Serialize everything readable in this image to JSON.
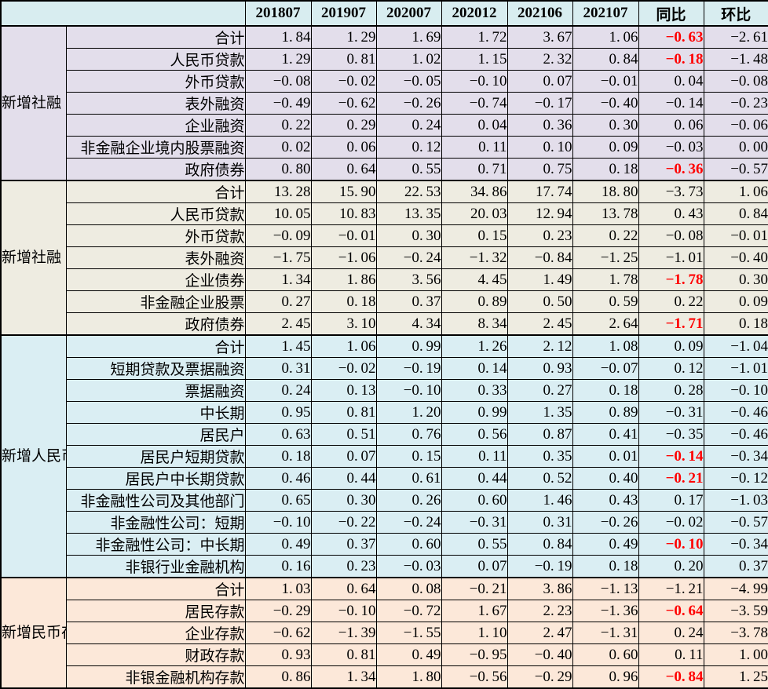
{
  "colors": {
    "header_bg": "#D8EDF0",
    "group_bgs": [
      "#E3DEEB",
      "#EEECE1",
      "#DAEEF3",
      "#FCE8D9"
    ],
    "negative_highlight": "#FF0000",
    "border": "#000000",
    "text": "#000000"
  },
  "chart_data": {
    "type": "table",
    "corner_label": "",
    "columns": [
      "201807",
      "201907",
      "202007",
      "202012",
      "202106",
      "202107",
      "同比",
      "环比"
    ],
    "groups": [
      {
        "label": "新增社融（当月值，万亿元）",
        "rows": [
          {
            "label": "合计",
            "values": [
              1.84,
              1.29,
              1.69,
              1.72,
              3.67,
              1.06,
              -0.63,
              -2.61
            ],
            "tongbi_red": true
          },
          {
            "label": "人民币贷款",
            "values": [
              1.29,
              0.81,
              1.02,
              1.15,
              2.32,
              0.84,
              -0.18,
              -1.48
            ],
            "tongbi_red": true
          },
          {
            "label": "外币贷款",
            "values": [
              -0.08,
              -0.02,
              -0.05,
              -0.1,
              0.07,
              -0.01,
              0.04,
              -0.08
            ],
            "tongbi_red": false
          },
          {
            "label": "表外融资",
            "values": [
              -0.49,
              -0.62,
              -0.26,
              -0.74,
              -0.17,
              -0.4,
              -0.14,
              -0.23
            ],
            "tongbi_red": false
          },
          {
            "label": "企业融资",
            "values": [
              0.22,
              0.29,
              0.24,
              0.04,
              0.36,
              0.3,
              0.06,
              -0.06
            ],
            "tongbi_red": false
          },
          {
            "label": "非金融企业境内股票融资",
            "values": [
              0.02,
              0.06,
              0.12,
              0.11,
              0.1,
              0.09,
              -0.03,
              0.0
            ],
            "tongbi_red": false
          },
          {
            "label": "政府债券",
            "values": [
              0.8,
              0.64,
              0.55,
              0.71,
              0.75,
              0.18,
              -0.36,
              -0.57
            ],
            "tongbi_red": true
          }
        ]
      },
      {
        "label": "新增社融（累计值，万亿元）",
        "rows": [
          {
            "label": "合计",
            "values": [
              13.28,
              15.9,
              22.53,
              34.86,
              17.74,
              18.8,
              -3.73,
              1.06
            ],
            "tongbi_red": false
          },
          {
            "label": "人民币贷款",
            "values": [
              10.05,
              10.83,
              13.35,
              20.03,
              12.94,
              13.78,
              0.43,
              0.84
            ],
            "tongbi_red": false
          },
          {
            "label": "外币贷款",
            "values": [
              -0.09,
              -0.01,
              0.3,
              0.15,
              0.23,
              0.22,
              -0.08,
              -0.01
            ],
            "tongbi_red": false
          },
          {
            "label": "表外融资",
            "values": [
              -1.75,
              -1.06,
              -0.24,
              -1.32,
              -0.84,
              -1.25,
              -1.01,
              -0.4
            ],
            "tongbi_red": false
          },
          {
            "label": "企业债券",
            "values": [
              1.34,
              1.86,
              3.56,
              4.45,
              1.49,
              1.78,
              -1.78,
              0.3
            ],
            "tongbi_red": true
          },
          {
            "label": "非金融企业股票",
            "values": [
              0.27,
              0.18,
              0.37,
              0.89,
              0.5,
              0.59,
              0.22,
              0.09
            ],
            "tongbi_red": false
          },
          {
            "label": "政府债券",
            "values": [
              2.45,
              3.1,
              4.34,
              8.34,
              2.45,
              2.64,
              -1.71,
              0.18
            ],
            "tongbi_red": true
          }
        ]
      },
      {
        "label": "新增人民币贷款（当月值，万亿元）",
        "rows": [
          {
            "label": "合计",
            "values": [
              1.45,
              1.06,
              0.99,
              1.26,
              2.12,
              1.08,
              0.09,
              -1.04
            ],
            "tongbi_red": false
          },
          {
            "label": "短期贷款及票据融资",
            "values": [
              0.31,
              -0.02,
              -0.19,
              0.14,
              0.93,
              -0.07,
              0.12,
              -1.01
            ],
            "tongbi_red": false
          },
          {
            "label": "票据融资",
            "values": [
              0.24,
              0.13,
              -0.1,
              0.33,
              0.27,
              0.18,
              0.28,
              -0.1
            ],
            "tongbi_red": false
          },
          {
            "label": "中长期",
            "values": [
              0.95,
              0.81,
              1.2,
              0.99,
              1.35,
              0.89,
              -0.31,
              -0.46
            ],
            "tongbi_red": false
          },
          {
            "label": "居民户",
            "values": [
              0.63,
              0.51,
              0.76,
              0.56,
              0.87,
              0.41,
              -0.35,
              -0.46
            ],
            "tongbi_red": false
          },
          {
            "label": "居民户短期贷款",
            "values": [
              0.18,
              0.07,
              0.15,
              0.11,
              0.35,
              0.01,
              -0.14,
              -0.34
            ],
            "tongbi_red": true
          },
          {
            "label": "居民户中长期贷款",
            "values": [
              0.46,
              0.44,
              0.61,
              0.44,
              0.52,
              0.4,
              -0.21,
              -0.12
            ],
            "tongbi_red": true
          },
          {
            "label": "非金融性公司及其他部门",
            "values": [
              0.65,
              0.3,
              0.26,
              0.6,
              1.46,
              0.43,
              0.17,
              -1.03
            ],
            "tongbi_red": false
          },
          {
            "label": "非金融性公司：短期",
            "values": [
              -0.1,
              -0.22,
              -0.24,
              -0.31,
              0.31,
              -0.26,
              -0.02,
              -0.57
            ],
            "tongbi_red": false
          },
          {
            "label": "非金融性公司：中长期",
            "values": [
              0.49,
              0.37,
              0.6,
              0.55,
              0.84,
              0.49,
              -0.1,
              -0.34
            ],
            "tongbi_red": true
          },
          {
            "label": "非银行业金融机构",
            "values": [
              0.16,
              0.23,
              -0.03,
              0.07,
              -0.19,
              0.18,
              0.2,
              0.37
            ],
            "tongbi_red": false
          }
        ]
      },
      {
        "label": "新增民币存款（当月值，万亿元）",
        "rows": [
          {
            "label": "合计",
            "values": [
              1.03,
              0.64,
              0.08,
              -0.21,
              3.86,
              -1.13,
              -1.21,
              -4.99
            ],
            "tongbi_red": false
          },
          {
            "label": "居民存款",
            "values": [
              -0.29,
              -0.1,
              -0.72,
              1.67,
              2.23,
              -1.36,
              -0.64,
              -3.59
            ],
            "tongbi_red": true
          },
          {
            "label": "企业存款",
            "values": [
              -0.62,
              -1.39,
              -1.55,
              1.1,
              2.47,
              -1.31,
              0.24,
              -3.78
            ],
            "tongbi_red": false
          },
          {
            "label": "财政存款",
            "values": [
              0.93,
              0.81,
              0.49,
              -0.95,
              -0.4,
              0.6,
              0.11,
              1.0
            ],
            "tongbi_red": false
          },
          {
            "label": "非银金融机构存款",
            "values": [
              0.86,
              1.34,
              1.8,
              -0.56,
              -0.29,
              0.96,
              -0.84,
              1.25
            ],
            "tongbi_red": true
          }
        ]
      }
    ]
  }
}
